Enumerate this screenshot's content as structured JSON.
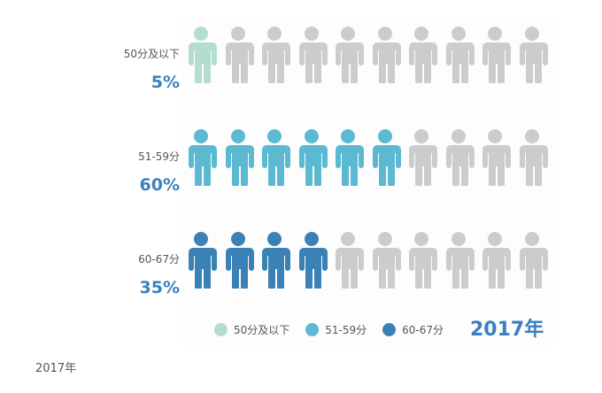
{
  "chart_data": {
    "type": "pictorial",
    "title": "2017年",
    "icons_per_row": 10,
    "series": [
      {
        "name": "50分及以下",
        "label": "50分及以下",
        "percent_label": "5%",
        "value": 5,
        "color": "#b3ddcd"
      },
      {
        "name": "51-59分",
        "label": "51-59分",
        "percent_label": "60%",
        "value": 60,
        "color": "#5bb9d1"
      },
      {
        "name": "60-67分",
        "label": "60-67分",
        "percent_label": "35%",
        "value": 35,
        "color": "#3a82b5"
      }
    ],
    "empty_color": "#cccccc",
    "legend_position": "bottom"
  },
  "caption": "2017年"
}
